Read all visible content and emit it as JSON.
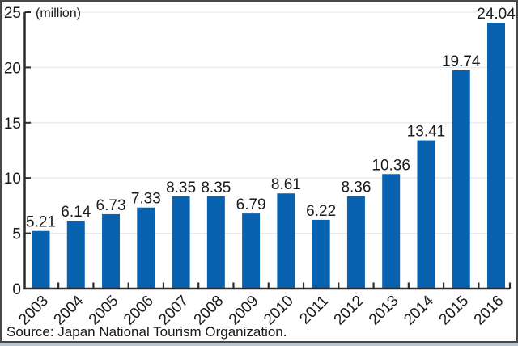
{
  "source_note": "Source: Japan National Tourism Organization.",
  "chart_data": {
    "type": "bar",
    "unit_label": "(million)",
    "categories": [
      "2003",
      "2004",
      "2005",
      "2006",
      "2007",
      "2008",
      "2009",
      "2010",
      "2011",
      "2012",
      "2013",
      "2014",
      "2015",
      "2016"
    ],
    "values": [
      5.21,
      6.14,
      6.73,
      7.33,
      8.35,
      8.35,
      6.79,
      8.61,
      6.22,
      8.36,
      10.36,
      13.41,
      19.74,
      24.04
    ],
    "value_labels": [
      "5.21",
      "6.14",
      "6.73",
      "7.33",
      "8.35",
      "8.35",
      "6.79",
      "8.61",
      "6.22",
      "8.36",
      "10.36",
      "13.41",
      "19.74",
      "24.04"
    ],
    "ylim": [
      0,
      25
    ],
    "yticks": [
      0,
      5,
      10,
      15,
      20,
      25
    ],
    "grid": "horizontal-light",
    "legend": "none",
    "x_tick_style": "inward ticks at category boundaries, labels rotated 45",
    "colors": {
      "bar": "#0962af",
      "axis": "#2b2b2b",
      "text": "#1a1a1a",
      "gridline": "#e9e9e9",
      "window_border": "#484848",
      "window_strip": "#b7c5ce"
    }
  }
}
